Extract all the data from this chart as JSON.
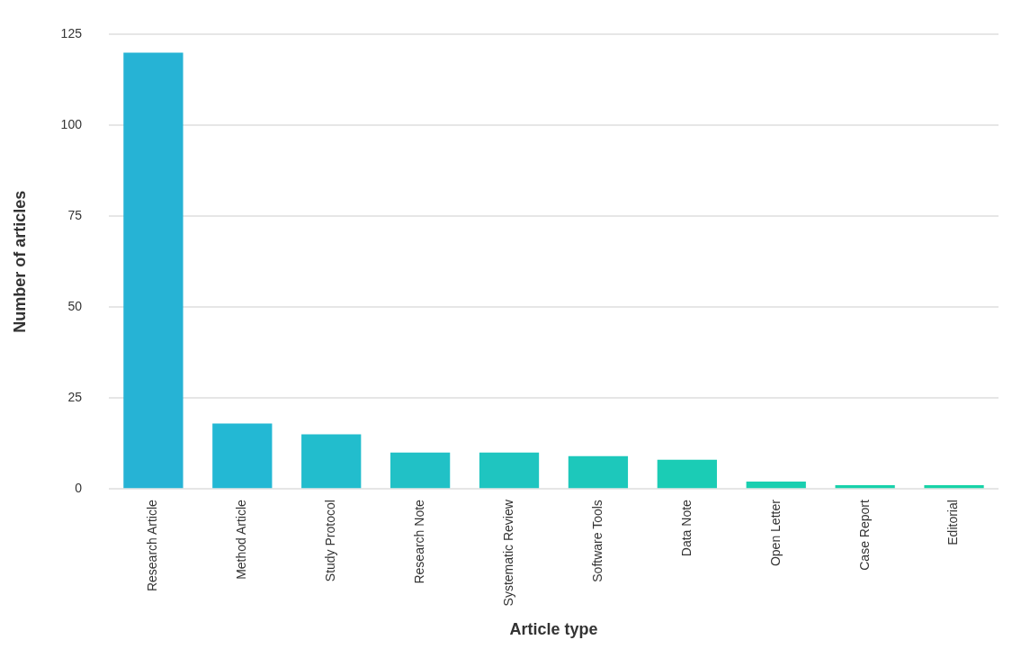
{
  "chart_data": {
    "type": "bar",
    "xlabel": "Article type",
    "ylabel": "Number of articles",
    "categories": [
      "Research Article",
      "Method Article",
      "Study Protocol",
      "Research Note",
      "Systematic Review",
      "Software Tools",
      "Data Note",
      "Open Letter",
      "Case Report",
      "Editorial"
    ],
    "values": [
      120,
      18,
      15,
      10,
      10,
      9,
      8,
      2,
      1,
      1
    ],
    "colors": [
      "#26b3d5",
      "#23b8d4",
      "#22bdcd",
      "#21c1c6",
      "#1fc5c0",
      "#1dc8bb",
      "#1bccb5",
      "#1acfb0",
      "#18d1ab",
      "#17d3a7"
    ],
    "ylim": [
      0,
      125
    ],
    "yticks": [
      0,
      25,
      50,
      75,
      100,
      125
    ],
    "grid": "y",
    "legend": false
  }
}
